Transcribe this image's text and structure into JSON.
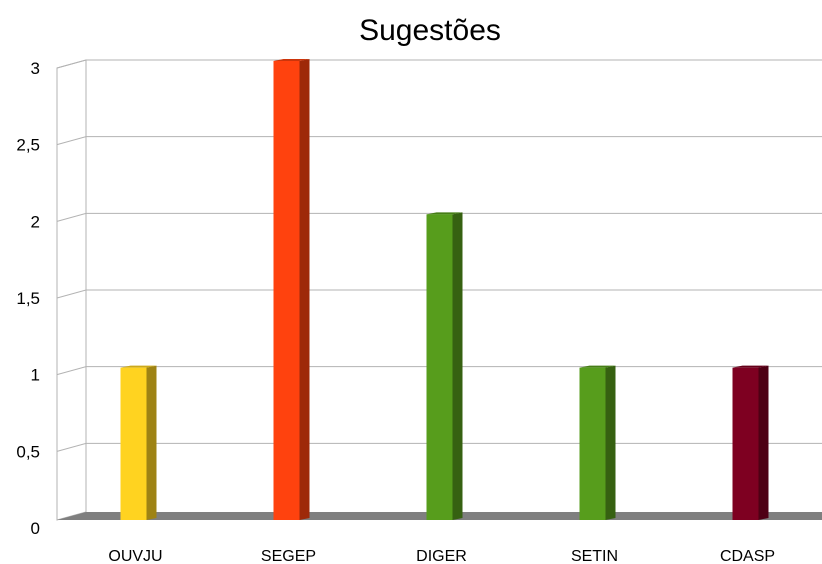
{
  "chart_data": {
    "type": "bar",
    "title": "Sugestões",
    "categories": [
      "OUVJU",
      "SEGEP",
      "DIGER",
      "SETIN",
      "CDASP"
    ],
    "values": [
      1,
      3,
      2,
      1,
      1
    ],
    "colors": [
      "#ffd320",
      "#ff420e",
      "#579d1c",
      "#579d1c",
      "#7e0021"
    ],
    "ylim": [
      0,
      3
    ],
    "yticks": [
      "0",
      "0,5",
      "1",
      "1,5",
      "2",
      "2,5",
      "3"
    ],
    "grid": true,
    "legend": "none",
    "three_d": true
  }
}
